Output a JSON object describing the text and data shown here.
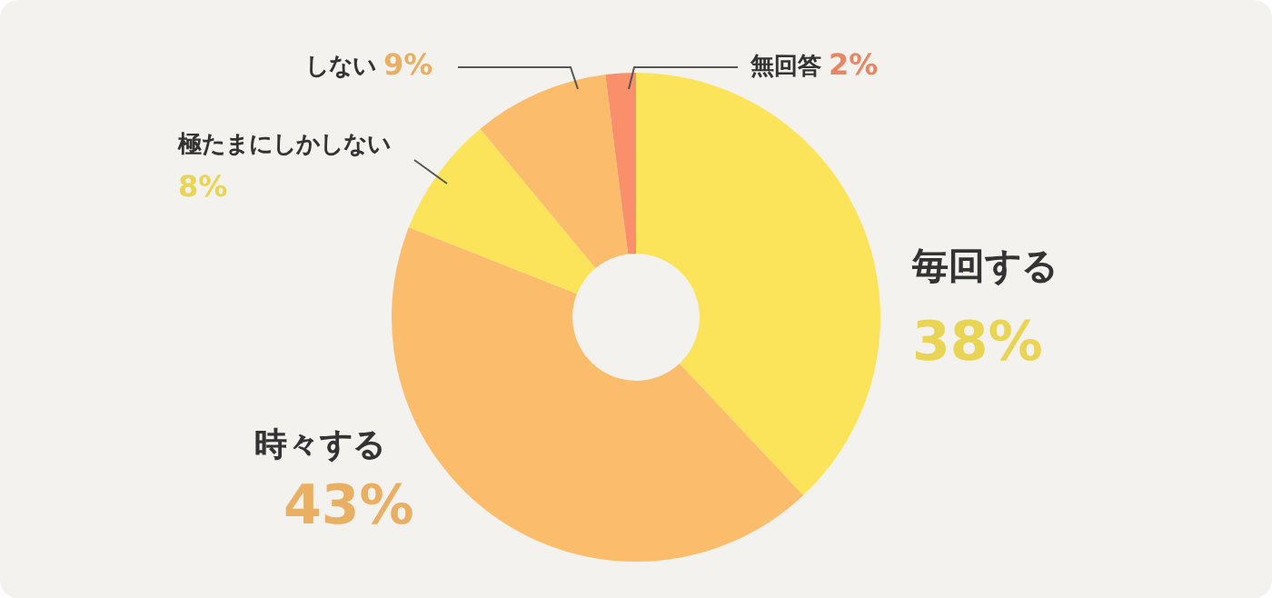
{
  "chart_data": {
    "type": "donut",
    "categories": [
      "毎回する",
      "時々する",
      "極たまにしかしない",
      "しない",
      "無回答"
    ],
    "values": [
      38,
      43,
      8,
      9,
      2
    ],
    "value_labels": [
      "38%",
      "43%",
      "8%",
      "9%",
      "2%"
    ],
    "colors": [
      "#fce45a",
      "#fbbd6b",
      "#fce45a",
      "#fbbd6b",
      "#f98f6b"
    ],
    "legend": false
  }
}
